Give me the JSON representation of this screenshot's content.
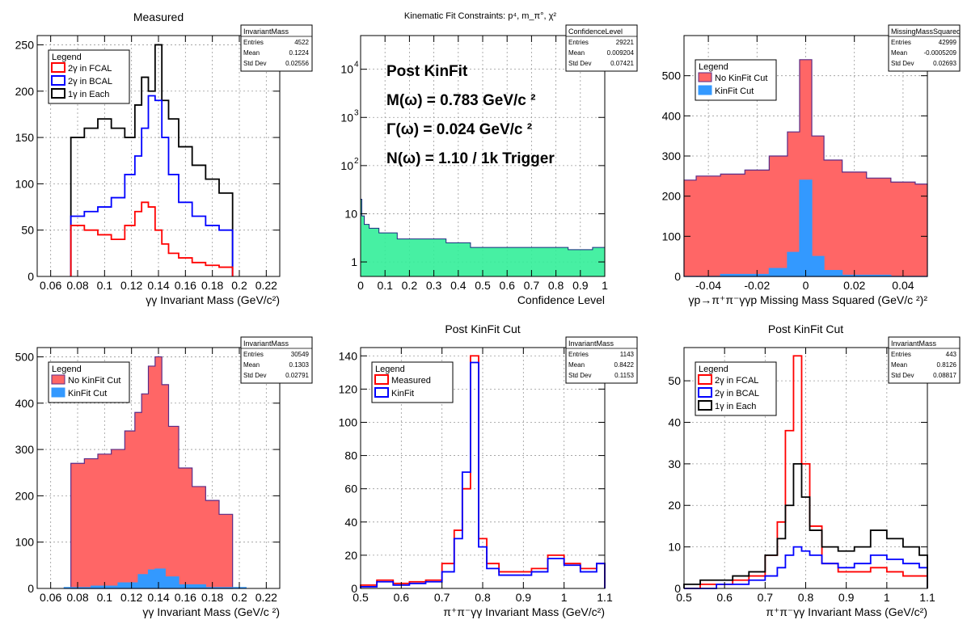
{
  "chart_data": [
    {
      "type": "step",
      "title": "Measured",
      "xlabel": "γγ Invariant Mass (GeV/c²)",
      "ylabel": "",
      "xlim": [
        0.05,
        0.23
      ],
      "ylim": [
        0,
        260
      ],
      "xticks": [
        0.06,
        0.08,
        0.1,
        0.12,
        0.14,
        0.16,
        0.18,
        0.2,
        0.22
      ],
      "yticks": [
        0,
        50,
        100,
        150,
        200,
        250
      ],
      "grid": true,
      "legend": {
        "title": "Legend",
        "position": "top-left"
      },
      "stats": {
        "name": "InvariantMass",
        "rows": [
          [
            "Entries",
            "4522"
          ],
          [
            "Mean",
            "0.1224"
          ],
          [
            "Std Dev",
            "0.02556"
          ]
        ]
      },
      "series": [
        {
          "name": "1γ in Each",
          "color": "#000000",
          "x": [
            0.08,
            0.09,
            0.1,
            0.11,
            0.12,
            0.125,
            0.13,
            0.135,
            0.14,
            0.145,
            0.15,
            0.16,
            0.17,
            0.18,
            0.19
          ],
          "y": [
            150,
            160,
            170,
            160,
            150,
            185,
            215,
            200,
            250,
            190,
            170,
            140,
            120,
            105,
            90
          ]
        },
        {
          "name": "2γ in BCAL",
          "color": "#0000ff",
          "x": [
            0.08,
            0.09,
            0.1,
            0.11,
            0.12,
            0.125,
            0.13,
            0.135,
            0.14,
            0.145,
            0.15,
            0.16,
            0.17,
            0.18,
            0.19
          ],
          "y": [
            65,
            70,
            75,
            85,
            110,
            130,
            160,
            195,
            190,
            150,
            110,
            80,
            65,
            55,
            50
          ]
        },
        {
          "name": "2γ in FCAL",
          "color": "#ff0000",
          "x": [
            0.08,
            0.09,
            0.1,
            0.11,
            0.12,
            0.125,
            0.13,
            0.135,
            0.14,
            0.145,
            0.15,
            0.16,
            0.17,
            0.18,
            0.19
          ],
          "y": [
            55,
            50,
            45,
            40,
            55,
            70,
            80,
            75,
            50,
            35,
            25,
            20,
            15,
            12,
            10
          ]
        }
      ]
    },
    {
      "type": "step",
      "title": "Kinematic Fit Constraints: p⁴, m_π°, χ²",
      "xlabel": "Confidence Level",
      "ylabel": "",
      "log_y": true,
      "xlim": [
        0,
        1
      ],
      "ylim": [
        0.5,
        50000
      ],
      "xticks": [
        0,
        0.1,
        0.2,
        0.3,
        0.4,
        0.5,
        0.6,
        0.7,
        0.8,
        0.9,
        1
      ],
      "yticks": [
        1,
        10,
        100,
        1000,
        10000
      ],
      "grid": true,
      "stats": {
        "name": "ConfidenceLevel",
        "rows": [
          [
            "Entries",
            "29221"
          ],
          [
            "Mean",
            "0.009204"
          ],
          [
            "Std Dev",
            "0.07421"
          ]
        ]
      },
      "annotations": [
        "Post KinFit",
        "M(ω) = 0.783 GeV/c ²",
        "Γ(ω) = 0.024 GeV/c ²",
        "N(ω) = 1.10 / 1k Trigger"
      ],
      "series": [
        {
          "name": "",
          "color": "#33ee99",
          "x": [
            0,
            0.01,
            0.02,
            0.05,
            0.1,
            0.2,
            0.3,
            0.4,
            0.5,
            0.6,
            0.7,
            0.8,
            0.9,
            1.0
          ],
          "y": [
            20,
            9,
            6,
            5,
            4,
            3,
            3,
            2.5,
            2,
            2,
            2,
            2,
            1.8,
            2
          ]
        }
      ]
    },
    {
      "type": "filled-step",
      "title": "",
      "xlabel": "γp→π⁺π⁻γγp Missing Mass Squared (GeV/c ²)²",
      "ylabel": "",
      "xlim": [
        -0.05,
        0.05
      ],
      "ylim": [
        0,
        600
      ],
      "xticks": [
        -0.04,
        -0.02,
        0,
        0.02,
        0.04
      ],
      "yticks": [
        0,
        100,
        200,
        300,
        400,
        500
      ],
      "grid": true,
      "legend": {
        "title": "Legend",
        "position": "top-left"
      },
      "stats": {
        "name": "MissingMassSquared",
        "rows": [
          [
            "Entries",
            "42999"
          ],
          [
            "Mean",
            "-0.0005209"
          ],
          [
            "Std Dev",
            "0.02693"
          ]
        ]
      },
      "series": [
        {
          "name": "No KinFit Cut",
          "color": "#ff6666",
          "x": [
            -0.05,
            -0.04,
            -0.03,
            -0.02,
            -0.01,
            -0.005,
            0,
            0.005,
            0.01,
            0.02,
            0.03,
            0.04,
            0.05
          ],
          "y": [
            240,
            250,
            255,
            265,
            300,
            360,
            540,
            350,
            290,
            260,
            245,
            235,
            230
          ]
        },
        {
          "name": "KinFit Cut",
          "color": "#3399ff",
          "x": [
            -0.05,
            -0.02,
            -0.01,
            -0.005,
            0,
            0.005,
            0.01,
            0.02,
            0.05
          ],
          "y": [
            0,
            5,
            20,
            60,
            240,
            50,
            15,
            3,
            0
          ]
        }
      ]
    },
    {
      "type": "filled-step",
      "title": "",
      "xlabel": "γγ Invariant Mass (GeV/c ²)",
      "ylabel": "",
      "xlim": [
        0.05,
        0.23
      ],
      "ylim": [
        0,
        520
      ],
      "xticks": [
        0.06,
        0.08,
        0.1,
        0.12,
        0.14,
        0.16,
        0.18,
        0.2,
        0.22
      ],
      "yticks": [
        0,
        100,
        200,
        300,
        400,
        500
      ],
      "grid": true,
      "legend": {
        "title": "Legend",
        "position": "top-left"
      },
      "stats": {
        "name": "InvariantMass",
        "rows": [
          [
            "Entries",
            "30549"
          ],
          [
            "Mean",
            "0.1303"
          ],
          [
            "Std Dev",
            "0.02791"
          ]
        ]
      },
      "series": [
        {
          "name": "No KinFit Cut",
          "color": "#ff6666",
          "x": [
            0.08,
            0.09,
            0.1,
            0.11,
            0.12,
            0.125,
            0.13,
            0.135,
            0.14,
            0.145,
            0.15,
            0.16,
            0.17,
            0.18,
            0.19
          ],
          "y": [
            270,
            280,
            290,
            300,
            340,
            380,
            420,
            480,
            500,
            440,
            350,
            260,
            220,
            190,
            160
          ]
        },
        {
          "name": "KinFit Cut",
          "color": "#3399ff",
          "x": [
            0.08,
            0.1,
            0.12,
            0.13,
            0.135,
            0.14,
            0.15,
            0.16,
            0.19
          ],
          "y": [
            2,
            5,
            12,
            30,
            40,
            42,
            25,
            8,
            2
          ]
        }
      ]
    },
    {
      "type": "step",
      "title": "Post KinFit Cut",
      "xlabel": "π⁺π⁻γγ Invariant Mass (GeV/c²)",
      "ylabel": "",
      "xlim": [
        0.5,
        1.1
      ],
      "ylim": [
        0,
        145
      ],
      "xticks": [
        0.5,
        0.6,
        0.7,
        0.8,
        0.9,
        1,
        1.1
      ],
      "yticks": [
        0,
        20,
        40,
        60,
        80,
        100,
        120,
        140
      ],
      "grid": true,
      "legend": {
        "title": "Legend",
        "position": "top-left"
      },
      "stats": {
        "name": "InvariantMass",
        "rows": [
          [
            "Entries",
            "1143"
          ],
          [
            "Mean",
            "0.8422"
          ],
          [
            "Std Dev",
            "0.1153"
          ]
        ]
      },
      "series": [
        {
          "name": "Measured",
          "color": "#ff0000",
          "x": [
            0.52,
            0.56,
            0.6,
            0.64,
            0.68,
            0.72,
            0.74,
            0.76,
            0.78,
            0.8,
            0.82,
            0.86,
            0.9,
            0.94,
            0.98,
            1.02,
            1.06,
            1.1
          ],
          "y": [
            2,
            5,
            3,
            4,
            5,
            15,
            35,
            60,
            140,
            30,
            15,
            10,
            10,
            12,
            20,
            15,
            12,
            15
          ]
        },
        {
          "name": "KinFit",
          "color": "#0000ff",
          "x": [
            0.52,
            0.56,
            0.6,
            0.64,
            0.68,
            0.72,
            0.74,
            0.76,
            0.78,
            0.8,
            0.82,
            0.86,
            0.9,
            0.94,
            0.98,
            1.02,
            1.06,
            1.1
          ],
          "y": [
            1,
            4,
            2,
            3,
            4,
            10,
            30,
            70,
            136,
            25,
            12,
            8,
            8,
            10,
            18,
            14,
            10,
            15
          ]
        }
      ]
    },
    {
      "type": "step",
      "title": "Post KinFit Cut",
      "xlabel": "π⁺π⁻γγ Invariant Mass (GeV/c²)",
      "ylabel": "",
      "xlim": [
        0.5,
        1.1
      ],
      "ylim": [
        0,
        58
      ],
      "xticks": [
        0.5,
        0.6,
        0.7,
        0.8,
        0.9,
        1,
        1.1
      ],
      "yticks": [
        0,
        10,
        20,
        30,
        40,
        50
      ],
      "grid": true,
      "legend": {
        "title": "Legend",
        "position": "top-left"
      },
      "stats": {
        "name": "InvariantMass",
        "rows": [
          [
            "Entries",
            "443"
          ],
          [
            "Mean",
            "0.8126"
          ],
          [
            "Std Dev",
            "0.08817"
          ]
        ]
      },
      "series": [
        {
          "name": "2γ in FCAL",
          "color": "#ff0000",
          "x": [
            0.52,
            0.56,
            0.6,
            0.64,
            0.68,
            0.72,
            0.74,
            0.76,
            0.78,
            0.8,
            0.82,
            0.86,
            0.9,
            0.94,
            0.98,
            1.02,
            1.06,
            1.1
          ],
          "y": [
            0,
            1,
            1,
            2,
            3,
            8,
            16,
            38,
            56,
            30,
            15,
            6,
            4,
            4,
            5,
            4,
            3,
            3
          ]
        },
        {
          "name": "2γ in BCAL",
          "color": "#0000ff",
          "x": [
            0.52,
            0.56,
            0.6,
            0.64,
            0.68,
            0.72,
            0.74,
            0.76,
            0.78,
            0.8,
            0.82,
            0.86,
            0.9,
            0.94,
            0.98,
            1.02,
            1.06,
            1.1
          ],
          "y": [
            0,
            0,
            1,
            1,
            2,
            3,
            5,
            8,
            10,
            9,
            8,
            6,
            5,
            6,
            8,
            7,
            6,
            5
          ]
        },
        {
          "name": "1γ in Each",
          "color": "#000000",
          "x": [
            0.52,
            0.56,
            0.6,
            0.64,
            0.68,
            0.72,
            0.74,
            0.76,
            0.78,
            0.8,
            0.82,
            0.86,
            0.9,
            0.94,
            0.98,
            1.02,
            1.06,
            1.1
          ],
          "y": [
            1,
            2,
            2,
            3,
            4,
            8,
            12,
            20,
            30,
            22,
            14,
            10,
            9,
            10,
            14,
            12,
            10,
            8
          ]
        }
      ]
    }
  ]
}
